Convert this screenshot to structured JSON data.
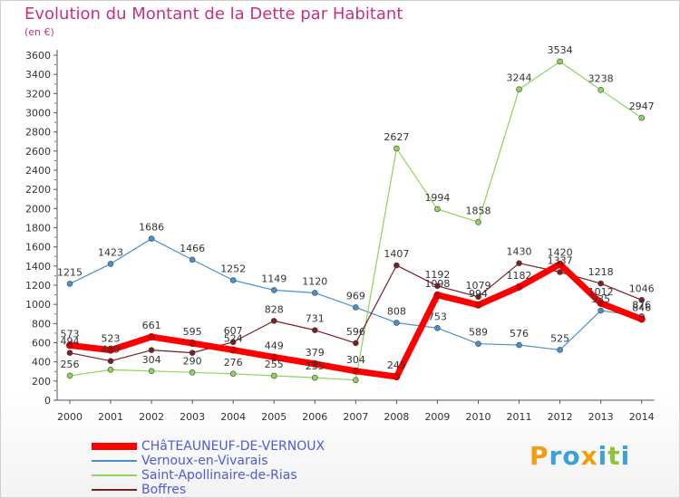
{
  "title": "Evolution du Montant de la Dette par Habitant",
  "unit_label": "(en €)",
  "logo": "Proxiti",
  "chart_data": {
    "type": "line",
    "title": "Evolution du Montant de la Dette par Habitant",
    "ylabel": "(en €)",
    "xlabel": "",
    "ylim": [
      0,
      3600
    ],
    "yticks": [
      0,
      200,
      400,
      600,
      800,
      1000,
      1200,
      1400,
      1600,
      1800,
      2000,
      2200,
      2400,
      2600,
      2800,
      3000,
      3200,
      3400,
      3600
    ],
    "categories": [
      "2000",
      "2001",
      "2002",
      "2003",
      "2004",
      "2005",
      "2006",
      "2007",
      "2008",
      "2009",
      "2010",
      "2011",
      "2012",
      "2013",
      "2014"
    ],
    "grid": false,
    "legend_position": "bottom-left",
    "series": [
      {
        "name": "Vernoux-en-Vivarais",
        "color": "#4a90c8",
        "stroke": 1.2,
        "labeled": true,
        "values": [
          1215,
          1423,
          1686,
          1466,
          1252,
          1149,
          1120,
          969,
          808,
          753,
          589,
          576,
          525,
          935,
          876
        ]
      },
      {
        "name": "Saint-Apollinaire-de-Rias",
        "color": "#8fd45a",
        "stroke": 1.2,
        "labeled": true,
        "values": [
          256,
          318,
          304,
          290,
          276,
          255,
          235,
          210,
          2627,
          1994,
          1858,
          3244,
          3534,
          3238,
          2947
        ]
      },
      {
        "name": "Boffres",
        "color": "#7a1f24",
        "stroke": 1.2,
        "labeled": true,
        "values": [
          494,
          409,
          523,
          495,
          607,
          828,
          731,
          596,
          1407,
          1192,
          1079,
          1430,
          1337,
          1218,
          1046
        ]
      },
      {
        "name": "CHâTEAUNEUF-DE-VERNOUX",
        "color": "#ff0000",
        "stroke": 7,
        "labeled": true,
        "values": [
          573,
          523,
          661,
          595,
          524,
          449,
          379,
          304,
          245,
          1098,
          994,
          1182,
          1420,
          1012,
          846
        ]
      }
    ],
    "data_labels": [
      {
        "series": "CHâTEAUNEUF-DE-VERNOUX",
        "labels": [
          "573",
          "523",
          "661",
          "595",
          "524",
          "449",
          "379",
          "304",
          "245",
          "1098",
          "994",
          "1182",
          "1420",
          "1012",
          "846"
        ]
      },
      {
        "series": "Vernoux-en-Vivarais",
        "labels": [
          "1215",
          "1423",
          "1686",
          "1466",
          "1252",
          "1149",
          "1120",
          "969",
          "808",
          "753",
          "589",
          "576",
          "525",
          "935",
          "876"
        ]
      },
      {
        "series": "Saint-Apollinaire-de-Rias",
        "labels": [
          "256",
          "",
          "304",
          "290",
          "276",
          "255",
          "235",
          "",
          "2627",
          "1994",
          "1858",
          "3244",
          "3534",
          "3238",
          "2947"
        ]
      },
      {
        "series": "Boffres",
        "labels": [
          "494",
          "409",
          "",
          "",
          "607",
          "828",
          "731",
          "596",
          "1407",
          "1192",
          "1079",
          "1430",
          "1337",
          "1218",
          "1046"
        ]
      }
    ]
  },
  "legend": [
    {
      "label": "CHâTEAUNEUF-DE-VERNOUX",
      "color": "#ff0000",
      "thick": true
    },
    {
      "label": "Vernoux-en-Vivarais",
      "color": "#4a90c8",
      "thick": false
    },
    {
      "label": "Saint-Apollinaire-de-Rias",
      "color": "#8fd45a",
      "thick": false
    },
    {
      "label": "Boffres",
      "color": "#7a1f24",
      "thick": false
    }
  ]
}
